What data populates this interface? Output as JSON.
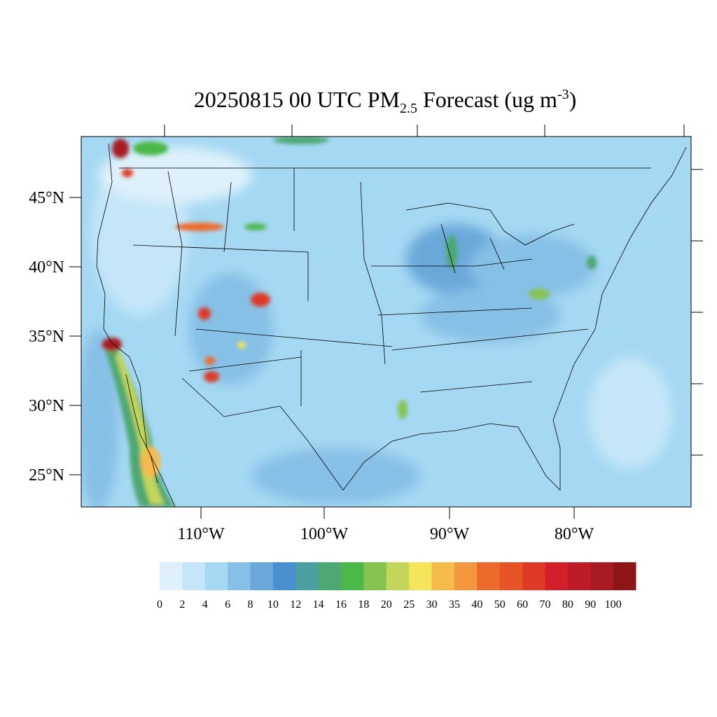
{
  "title": {
    "main": "20250815 00 UTC PM",
    "sub": "2.5",
    "mid": " Forecast (ug m",
    "sup": "-3",
    "end": ")"
  },
  "lat_labels": [
    "45°N",
    "40°N",
    "35°N",
    "30°N",
    "25°N"
  ],
  "lon_labels": [
    "110°W",
    "100°W",
    "90°W",
    "80°W"
  ],
  "colorbar": {
    "labels": [
      0,
      2,
      4,
      6,
      8,
      10,
      12,
      14,
      16,
      18,
      20,
      25,
      30,
      35,
      40,
      50,
      60,
      70,
      80,
      90,
      100
    ],
    "colors": [
      "#def1fb",
      "#c4e6f8",
      "#a5d8f3",
      "#87c0e6",
      "#6aa8d9",
      "#4a8fcf",
      "#4b9fa0",
      "#4ea873",
      "#4cb84a",
      "#86c452",
      "#c3d65a",
      "#f5e55a",
      "#f6bb4d",
      "#f4963e",
      "#ee6a2c",
      "#e75428",
      "#de3a26",
      "#d21f2a",
      "#bd1b27",
      "#a91a22",
      "#8e1619"
    ]
  }
}
